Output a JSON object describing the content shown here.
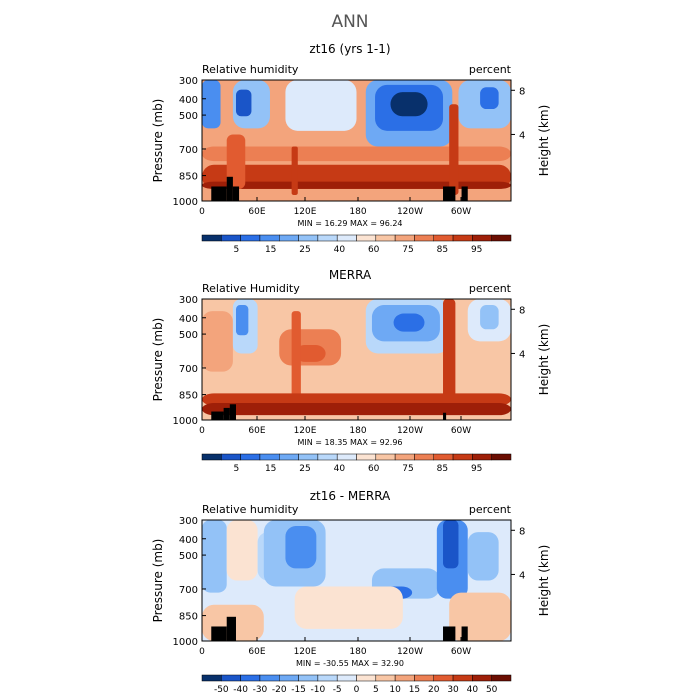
{
  "page_title": "ANN",
  "chart_data": [
    {
      "type": "heatmap",
      "title": "zt16 (yrs 1-1)",
      "left_label": "Relative humidity",
      "right_label": "percent",
      "ylabel": "Pressure (mb)",
      "ylabel2": "Height (km)",
      "xticks": [
        "0",
        "60E",
        "120E",
        "180",
        "120W",
        "60W"
      ],
      "yticks": [
        "300",
        "400",
        "500",
        "700",
        "850",
        "1000"
      ],
      "y2ticks": [
        "8",
        "4"
      ],
      "stats": "MIN =   16.29   MAX =   96.24",
      "min": 16.29,
      "max": 96.24,
      "colorbar_labels": [
        "5",
        "15",
        "25",
        "40",
        "60",
        "75",
        "85",
        "95"
      ]
    },
    {
      "type": "heatmap",
      "title": "MERRA",
      "left_label": "Relative Humidity",
      "right_label": "percent",
      "ylabel": "Pressure (mb)",
      "ylabel2": "Height (km)",
      "xticks": [
        "0",
        "60E",
        "120E",
        "180",
        "120W",
        "60W"
      ],
      "yticks": [
        "300",
        "400",
        "500",
        "700",
        "850",
        "1000"
      ],
      "y2ticks": [
        "8",
        "4"
      ],
      "stats": "MIN =   18.35   MAX =   92.96",
      "min": 18.35,
      "max": 92.96,
      "colorbar_labels": [
        "5",
        "15",
        "25",
        "40",
        "60",
        "75",
        "85",
        "95"
      ]
    },
    {
      "type": "heatmap",
      "title": "zt16 - MERRA",
      "left_label": "Relative humidity",
      "right_label": "percent",
      "ylabel": "Pressure (mb)",
      "ylabel2": "Height (km)",
      "xticks": [
        "0",
        "60E",
        "120E",
        "180",
        "120W",
        "60W"
      ],
      "yticks": [
        "300",
        "400",
        "500",
        "700",
        "850",
        "1000"
      ],
      "y2ticks": [
        "8",
        "4"
      ],
      "stats": "MIN =  -30.55   MAX =   32.90",
      "min": -30.55,
      "max": 32.9,
      "colorbar_labels": [
        "-50",
        "-40",
        "-30",
        "-20",
        "-15",
        "-10",
        "-5",
        "0",
        "5",
        "10",
        "15",
        "20",
        "30",
        "40",
        "50"
      ]
    }
  ],
  "colors": {
    "colorbar": [
      "#08306b",
      "#1a55c8",
      "#2b6fe6",
      "#4a8ef0",
      "#6ea9f4",
      "#93c2f7",
      "#b9d8fa",
      "#ddeafb",
      "#fbe3d2",
      "#f8c6a5",
      "#f3a47c",
      "#ec7f53",
      "#e15b30",
      "#c63a15",
      "#9e1f08",
      "#6b0e02"
    ],
    "terrain": "#000000"
  }
}
